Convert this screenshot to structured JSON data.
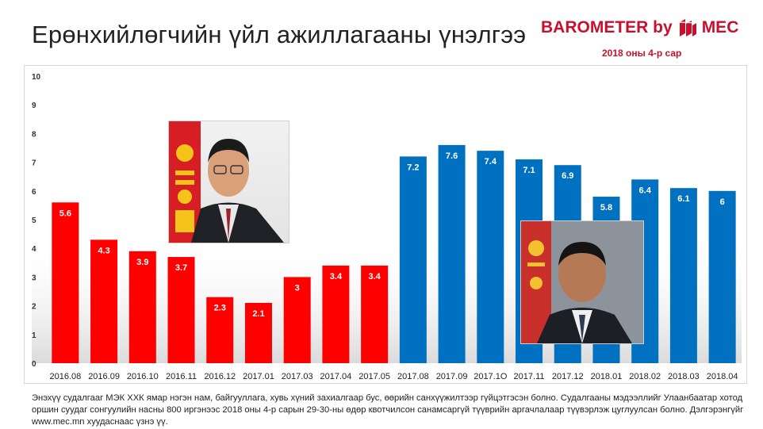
{
  "header": {
    "title": "Ерөнхийлөгчийн үйл ажиллагааны үнэлгээ",
    "brand_a": "BAROMETER by",
    "brand_b": "MEC",
    "subtitle": "2018 оны 4-р сар"
  },
  "footnote": "Энэхүү судалгааг МЭК ХХК ямар нэгэн нам, байгууллага, хувь хүний захиалгаар бус, өөрийн санхүүжилтээр гүйцэтгэсэн болно. Судалгааны мэдээллийг Улаанбаатар хотод оршин суудаг сонгуулийн насны 800 иргэнээс 2018 оны 4-р сарын 29-30-ны өдөр квотчилсон санамсаргүй түүврийн аргачлалаар түүвэрлэж цуглуулсан болно. Дэлгэрэнгүйг www.mec.mn  хуудаснаас үзнэ үү.",
  "colors": {
    "series_red": "#ff0000",
    "series_blue": "#0070c0",
    "brand": "#c8102e"
  },
  "images": [
    "president-elbegdorj-photo",
    "president-battulga-photo"
  ],
  "chart_data": {
    "type": "bar",
    "categories": [
      "2016.08",
      "2016.09",
      "2016.10",
      "2016.11",
      "2016.12",
      "2017.01",
      "2017.03",
      "2017.04",
      "2017.05",
      "2017.08",
      "2017.09",
      "2017.1O",
      "2017.11",
      "2017.12",
      "2018.01",
      "2018.02",
      "2018.03",
      "2018.04"
    ],
    "values": [
      5.6,
      4.3,
      3.9,
      3.7,
      2.3,
      2.1,
      3,
      3.4,
      3.4,
      7.2,
      7.6,
      7.4,
      7.1,
      6.9,
      5.8,
      6.4,
      6.1,
      6
    ],
    "bar_colors": [
      "red",
      "red",
      "red",
      "red",
      "red",
      "red",
      "red",
      "red",
      "red",
      "blue",
      "blue",
      "blue",
      "blue",
      "blue",
      "blue",
      "blue",
      "blue",
      "blue"
    ],
    "ylim": [
      0,
      10
    ],
    "yticks": [
      "0",
      "1",
      "2",
      "3",
      "4",
      "5",
      "6",
      "7",
      "8",
      "9",
      "10"
    ],
    "title": "",
    "xlabel": "",
    "ylabel": "",
    "grid": false,
    "data_labels": true
  }
}
